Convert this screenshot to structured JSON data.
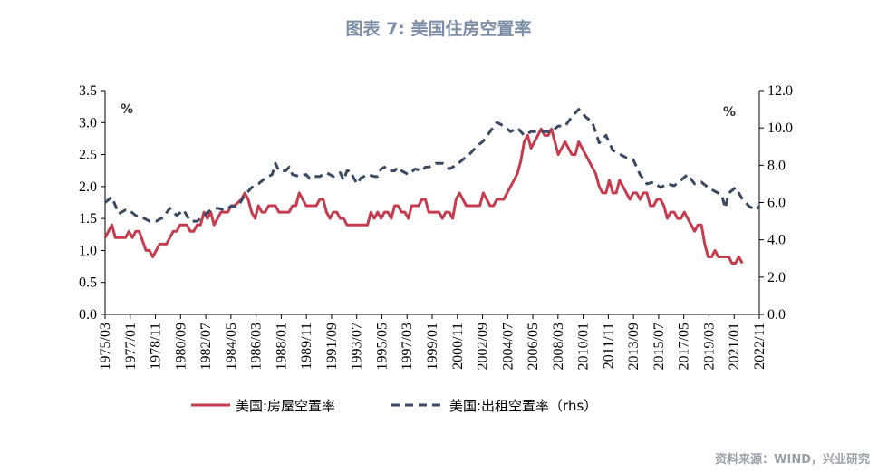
{
  "chart_data": {
    "type": "line",
    "title": "图表 7:   美国住房空置率",
    "left_unit": "%",
    "right_unit": "%",
    "source": "资料来源：WIND，兴业研究",
    "ylim_left": [
      0,
      3.5
    ],
    "ylim_right": [
      0,
      12
    ],
    "left_ticks": [
      "0.0",
      "0.5",
      "1.0",
      "1.5",
      "2.0",
      "2.5",
      "3.0",
      "3.5"
    ],
    "right_ticks": [
      "0.0",
      "2.0",
      "4.0",
      "6.0",
      "8.0",
      "10.0",
      "12.0"
    ],
    "x_tick_labels": [
      "1975/03",
      "1977/01",
      "1978/11",
      "1980/09",
      "1982/07",
      "1984/05",
      "1986/03",
      "1988/01",
      "1989/11",
      "1991/09",
      "1993/07",
      "1995/05",
      "1997/03",
      "1999/01",
      "2000/11",
      "2002/09",
      "2004/07",
      "2006/05",
      "2008/03",
      "2010/01",
      "2011/11",
      "2013/09",
      "2015/07",
      "2017/05",
      "2019/03",
      "2021/01",
      "2022/11"
    ],
    "x_range": [
      1975.0,
      2023.0
    ],
    "series": [
      {
        "name": "美国:房屋空置率",
        "axis": "left",
        "color": "#c63c4f",
        "dash": false,
        "points": [
          [
            1975.0,
            1.2
          ],
          [
            1975.5,
            1.4
          ],
          [
            1975.75,
            1.2
          ],
          [
            1976.5,
            1.2
          ],
          [
            1976.75,
            1.3
          ],
          [
            1977.0,
            1.2
          ],
          [
            1977.25,
            1.3
          ],
          [
            1977.5,
            1.3
          ],
          [
            1978.0,
            1.0
          ],
          [
            1978.25,
            1.0
          ],
          [
            1978.5,
            0.9
          ],
          [
            1978.75,
            1.0
          ],
          [
            1979.0,
            1.1
          ],
          [
            1979.5,
            1.1
          ],
          [
            1980.0,
            1.3
          ],
          [
            1980.25,
            1.3
          ],
          [
            1980.5,
            1.4
          ],
          [
            1981.0,
            1.4
          ],
          [
            1981.25,
            1.3
          ],
          [
            1981.5,
            1.3
          ],
          [
            1981.75,
            1.4
          ],
          [
            1982.0,
            1.4
          ],
          [
            1982.25,
            1.6
          ],
          [
            1982.5,
            1.5
          ],
          [
            1982.75,
            1.6
          ],
          [
            1983.0,
            1.4
          ],
          [
            1983.25,
            1.5
          ],
          [
            1983.5,
            1.6
          ],
          [
            1984.0,
            1.6
          ],
          [
            1984.25,
            1.7
          ],
          [
            1984.5,
            1.7
          ],
          [
            1985.0,
            1.8
          ],
          [
            1985.25,
            1.9
          ],
          [
            1985.5,
            1.8
          ],
          [
            1985.75,
            1.6
          ],
          [
            1986.0,
            1.5
          ],
          [
            1986.25,
            1.7
          ],
          [
            1986.5,
            1.6
          ],
          [
            1986.75,
            1.6
          ],
          [
            1987.0,
            1.7
          ],
          [
            1987.5,
            1.7
          ],
          [
            1987.75,
            1.6
          ],
          [
            1988.5,
            1.6
          ],
          [
            1988.75,
            1.7
          ],
          [
            1989.0,
            1.7
          ],
          [
            1989.25,
            1.9
          ],
          [
            1989.5,
            1.8
          ],
          [
            1989.75,
            1.7
          ],
          [
            1990.5,
            1.7
          ],
          [
            1990.75,
            1.8
          ],
          [
            1991.0,
            1.8
          ],
          [
            1991.25,
            1.6
          ],
          [
            1991.5,
            1.5
          ],
          [
            1991.75,
            1.6
          ],
          [
            1992.0,
            1.6
          ],
          [
            1992.25,
            1.5
          ],
          [
            1992.5,
            1.5
          ],
          [
            1992.75,
            1.4
          ],
          [
            1993.0,
            1.4
          ],
          [
            1994.25,
            1.4
          ],
          [
            1994.5,
            1.6
          ],
          [
            1994.75,
            1.5
          ],
          [
            1995.0,
            1.6
          ],
          [
            1995.25,
            1.5
          ],
          [
            1995.5,
            1.6
          ],
          [
            1995.75,
            1.6
          ],
          [
            1996.0,
            1.5
          ],
          [
            1996.25,
            1.7
          ],
          [
            1996.5,
            1.7
          ],
          [
            1996.75,
            1.6
          ],
          [
            1997.0,
            1.6
          ],
          [
            1997.25,
            1.5
          ],
          [
            1997.5,
            1.7
          ],
          [
            1998.0,
            1.7
          ],
          [
            1998.25,
            1.8
          ],
          [
            1998.5,
            1.8
          ],
          [
            1998.75,
            1.6
          ],
          [
            1999.0,
            1.6
          ],
          [
            1999.5,
            1.6
          ],
          [
            1999.75,
            1.5
          ],
          [
            2000.0,
            1.6
          ],
          [
            2000.25,
            1.6
          ],
          [
            2000.5,
            1.5
          ],
          [
            2000.75,
            1.8
          ],
          [
            2001.0,
            1.9
          ],
          [
            2001.25,
            1.8
          ],
          [
            2001.5,
            1.7
          ],
          [
            2001.75,
            1.7
          ],
          [
            2002.0,
            1.7
          ],
          [
            2002.5,
            1.7
          ],
          [
            2002.75,
            1.9
          ],
          [
            2003.0,
            1.8
          ],
          [
            2003.25,
            1.7
          ],
          [
            2003.5,
            1.7
          ],
          [
            2003.75,
            1.8
          ],
          [
            2004.25,
            1.8
          ],
          [
            2004.5,
            1.9
          ],
          [
            2004.75,
            2.0
          ],
          [
            2005.0,
            2.1
          ],
          [
            2005.25,
            2.2
          ],
          [
            2005.5,
            2.4
          ],
          [
            2005.75,
            2.7
          ],
          [
            2006.0,
            2.8
          ],
          [
            2006.25,
            2.6
          ],
          [
            2006.5,
            2.7
          ],
          [
            2006.75,
            2.8
          ],
          [
            2007.0,
            2.9
          ],
          [
            2007.25,
            2.8
          ],
          [
            2007.5,
            2.8
          ],
          [
            2007.75,
            2.9
          ],
          [
            2008.0,
            2.7
          ],
          [
            2008.25,
            2.5
          ],
          [
            2008.5,
            2.6
          ],
          [
            2008.75,
            2.7
          ],
          [
            2009.0,
            2.6
          ],
          [
            2009.25,
            2.5
          ],
          [
            2009.5,
            2.5
          ],
          [
            2009.75,
            2.7
          ],
          [
            2010.0,
            2.6
          ],
          [
            2010.25,
            2.5
          ],
          [
            2010.5,
            2.4
          ],
          [
            2010.75,
            2.3
          ],
          [
            2011.0,
            2.2
          ],
          [
            2011.25,
            2.0
          ],
          [
            2011.5,
            1.9
          ],
          [
            2011.75,
            1.9
          ],
          [
            2012.0,
            2.1
          ],
          [
            2012.25,
            1.9
          ],
          [
            2012.5,
            1.9
          ],
          [
            2012.75,
            2.1
          ],
          [
            2013.0,
            2.0
          ],
          [
            2013.25,
            1.9
          ],
          [
            2013.5,
            1.8
          ],
          [
            2013.75,
            1.9
          ],
          [
            2014.0,
            1.9
          ],
          [
            2014.25,
            1.8
          ],
          [
            2014.5,
            1.9
          ],
          [
            2014.75,
            1.9
          ],
          [
            2015.0,
            1.7
          ],
          [
            2015.25,
            1.7
          ],
          [
            2015.5,
            1.8
          ],
          [
            2015.75,
            1.8
          ],
          [
            2016.0,
            1.7
          ],
          [
            2016.25,
            1.5
          ],
          [
            2016.5,
            1.6
          ],
          [
            2016.75,
            1.6
          ],
          [
            2017.0,
            1.5
          ],
          [
            2017.25,
            1.5
          ],
          [
            2017.5,
            1.6
          ],
          [
            2017.75,
            1.5
          ],
          [
            2018.0,
            1.4
          ],
          [
            2018.25,
            1.3
          ],
          [
            2018.5,
            1.4
          ],
          [
            2018.75,
            1.4
          ],
          [
            2019.0,
            1.1
          ],
          [
            2019.25,
            0.9
          ],
          [
            2019.5,
            0.9
          ],
          [
            2019.75,
            1.0
          ],
          [
            2020.0,
            0.9
          ],
          [
            2020.75,
            0.9
          ],
          [
            2021.0,
            0.8
          ],
          [
            2021.25,
            0.8
          ],
          [
            2021.5,
            0.9
          ],
          [
            2021.75,
            0.8
          ]
        ]
      },
      {
        "name": "美国:出租空置率（rhs）",
        "axis": "right",
        "color": "#3b4a63",
        "dash": true,
        "points": [
          [
            1975.0,
            6.0
          ],
          [
            1975.5,
            6.3
          ],
          [
            1976.0,
            5.4
          ],
          [
            1976.5,
            5.6
          ],
          [
            1976.75,
            5.6
          ],
          [
            1977.25,
            5.3
          ],
          [
            1977.75,
            5.2
          ],
          [
            1978.25,
            5.0
          ],
          [
            1978.75,
            5.0
          ],
          [
            1979.25,
            5.2
          ],
          [
            1979.75,
            5.7
          ],
          [
            1980.25,
            5.3
          ],
          [
            1980.75,
            5.6
          ],
          [
            1981.25,
            5.0
          ],
          [
            1981.75,
            5.0
          ],
          [
            1982.25,
            5.3
          ],
          [
            1982.75,
            5.6
          ],
          [
            1983.25,
            5.7
          ],
          [
            1983.75,
            5.6
          ],
          [
            1984.25,
            5.8
          ],
          [
            1984.75,
            5.8
          ],
          [
            1985.25,
            6.4
          ],
          [
            1985.75,
            6.8
          ],
          [
            1986.25,
            7.0
          ],
          [
            1986.75,
            7.3
          ],
          [
            1987.25,
            7.5
          ],
          [
            1987.5,
            8.1
          ],
          [
            1987.75,
            7.7
          ],
          [
            1988.25,
            7.7
          ],
          [
            1988.5,
            7.9
          ],
          [
            1988.75,
            7.5
          ],
          [
            1989.25,
            7.4
          ],
          [
            1989.75,
            7.5
          ],
          [
            1990.0,
            7.3
          ],
          [
            1990.25,
            7.4
          ],
          [
            1990.75,
            7.4
          ],
          [
            1991.25,
            7.6
          ],
          [
            1991.75,
            7.4
          ],
          [
            1992.25,
            7.6
          ],
          [
            1992.5,
            7.2
          ],
          [
            1992.75,
            7.7
          ],
          [
            1993.0,
            7.7
          ],
          [
            1993.25,
            7.3
          ],
          [
            1993.5,
            7.0
          ],
          [
            1993.75,
            7.3
          ],
          [
            1994.25,
            7.5
          ],
          [
            1994.75,
            7.4
          ],
          [
            1995.0,
            7.4
          ],
          [
            1995.25,
            7.8
          ],
          [
            1995.5,
            7.9
          ],
          [
            1995.75,
            7.7
          ],
          [
            1996.25,
            7.7
          ],
          [
            1996.5,
            7.9
          ],
          [
            1996.75,
            7.7
          ],
          [
            1997.25,
            7.5
          ],
          [
            1997.75,
            7.8
          ],
          [
            1998.25,
            7.7
          ],
          [
            1998.5,
            7.9
          ],
          [
            1998.75,
            7.9
          ],
          [
            1999.25,
            8.1
          ],
          [
            1999.75,
            8.1
          ],
          [
            2000.25,
            7.8
          ],
          [
            2000.75,
            8.0
          ],
          [
            2001.25,
            8.3
          ],
          [
            2001.75,
            8.6
          ],
          [
            2002.25,
            9.0
          ],
          [
            2002.75,
            9.3
          ],
          [
            2003.25,
            9.8
          ],
          [
            2003.75,
            10.3
          ],
          [
            2004.25,
            10.1
          ],
          [
            2004.75,
            9.8
          ],
          [
            2005.25,
            10.0
          ],
          [
            2005.75,
            9.6
          ],
          [
            2006.25,
            9.8
          ],
          [
            2006.75,
            9.8
          ],
          [
            2007.25,
            9.8
          ],
          [
            2007.75,
            9.8
          ],
          [
            2008.25,
            10.1
          ],
          [
            2008.75,
            10.1
          ],
          [
            2009.25,
            10.6
          ],
          [
            2009.75,
            11.0
          ],
          [
            2010.25,
            10.6
          ],
          [
            2010.75,
            10.3
          ],
          [
            2011.25,
            9.2
          ],
          [
            2011.75,
            9.6
          ],
          [
            2012.25,
            8.8
          ],
          [
            2012.75,
            8.6
          ],
          [
            2013.25,
            8.4
          ],
          [
            2013.75,
            8.3
          ],
          [
            2014.25,
            7.5
          ],
          [
            2014.75,
            7.0
          ],
          [
            2015.25,
            7.1
          ],
          [
            2015.75,
            6.8
          ],
          [
            2016.25,
            7.0
          ],
          [
            2016.75,
            6.9
          ],
          [
            2017.25,
            7.2
          ],
          [
            2017.75,
            7.5
          ],
          [
            2018.25,
            7.0
          ],
          [
            2018.75,
            7.1
          ],
          [
            2019.25,
            6.8
          ],
          [
            2019.75,
            6.6
          ],
          [
            2020.25,
            6.4
          ],
          [
            2020.5,
            5.7
          ],
          [
            2020.75,
            6.5
          ],
          [
            2021.25,
            6.8
          ],
          [
            2021.75,
            6.2
          ],
          [
            2022.25,
            5.8
          ],
          [
            2022.75,
            5.6
          ],
          [
            2023.0,
            5.8
          ]
        ]
      }
    ]
  }
}
